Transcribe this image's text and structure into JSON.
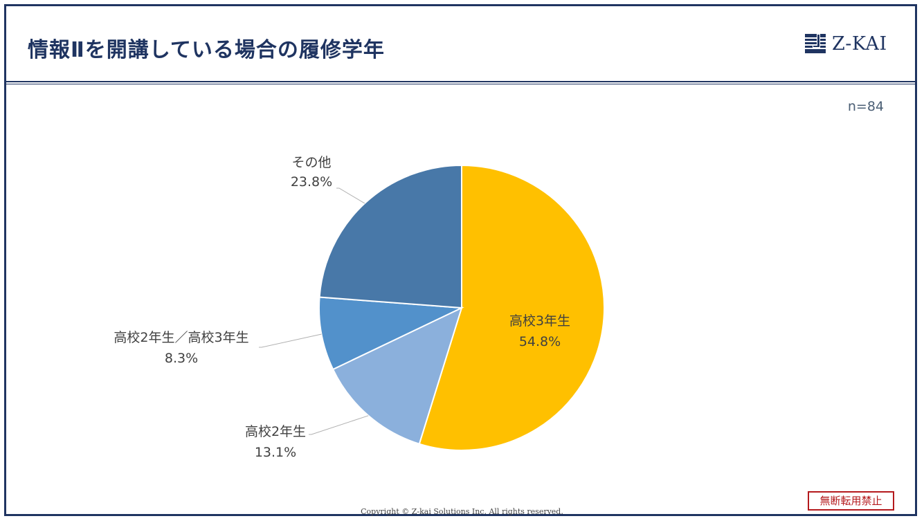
{
  "header": {
    "title": "情報Ⅱを開講している場合の履修学年",
    "logo_text": "Z-KAI"
  },
  "sample_size": "n=84",
  "chart_data": {
    "type": "pie",
    "title": "情報Ⅱを開講している場合の履修学年",
    "slices": [
      {
        "label": "高校3年生",
        "value": 54.8,
        "value_label": "54.8%",
        "color": "#ffc000"
      },
      {
        "label": "高校2年生",
        "value": 13.1,
        "value_label": "13.1%",
        "color": "#8bb0dc"
      },
      {
        "label": "高校2年生／高校3年生",
        "value": 8.3,
        "value_label": "8.3%",
        "color": "#5291cb"
      },
      {
        "label": "その他",
        "value": 23.8,
        "value_label": "23.8%",
        "color": "#4878a8"
      }
    ],
    "start": "12 o'clock",
    "direction": "clockwise"
  },
  "footer": {
    "copyright": "Copyright © Z-kai Solutions Inc. All rights reserved.",
    "stamp": "無断転用禁止"
  },
  "colors": {
    "navy": "#1f3461",
    "stamp_red": "#b4191c"
  }
}
